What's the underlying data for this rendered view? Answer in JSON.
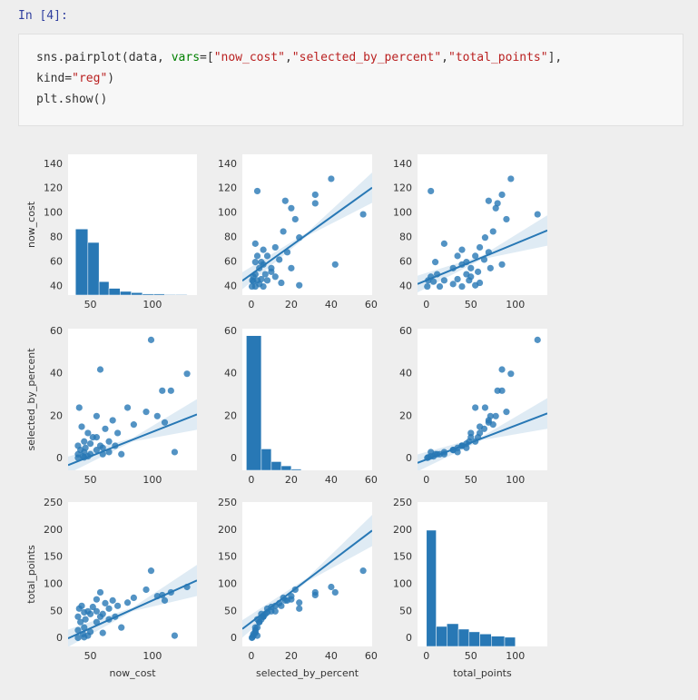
{
  "cell": {
    "prompt": "In [4]:",
    "code": [
      [
        {
          "text": "sns.pairplot(data, ",
          "style": "plain"
        },
        {
          "text": "vars",
          "style": "kw"
        },
        {
          "text": "=[",
          "style": "plain"
        },
        {
          "text": "\"now_cost\"",
          "style": "str"
        },
        {
          "text": ",",
          "style": "plain"
        },
        {
          "text": "\"selected_by_percent\"",
          "style": "str"
        },
        {
          "text": ",",
          "style": "plain"
        },
        {
          "text": "\"total_points\"",
          "style": "str"
        },
        {
          "text": "],",
          "style": "plain"
        }
      ],
      [
        {
          "text": "kind=",
          "style": "plain"
        },
        {
          "text": "\"reg\"",
          "style": "str"
        },
        {
          "text": ")",
          "style": "plain"
        }
      ],
      [
        {
          "text": "plt.show()",
          "style": "plain"
        }
      ]
    ]
  },
  "chart_data": {
    "type": "pairplot",
    "color": "#2878b5",
    "variables": [
      "now_cost",
      "selected_by_percent",
      "total_points"
    ],
    "axes": {
      "now_cost": {
        "xlim": [
          32,
          136
        ],
        "xticks": [
          50,
          100
        ],
        "ylim": [
          33,
          148
        ],
        "yticks": [
          40,
          60,
          80,
          100,
          120,
          140
        ]
      },
      "selected_by_percent": {
        "xlim": [
          -4.5,
          60.5
        ],
        "xticks": [
          0,
          20,
          40,
          60
        ],
        "ylim": [
          -5.6,
          61.3
        ],
        "yticks": [
          0,
          20,
          40,
          60
        ]
      },
      "total_points": {
        "xlim": [
          -10,
          136
        ],
        "xticks": [
          0,
          50,
          100
        ],
        "ylim": [
          -15,
          252
        ],
        "yticks": [
          0,
          50,
          100,
          150,
          200,
          250
        ]
      }
    },
    "data": {
      "now_cost": [
        99,
        128,
        58,
        115,
        108,
        118,
        110,
        104,
        95,
        85,
        80,
        72,
        68,
        65,
        62,
        60,
        58,
        55,
        55,
        52,
        50,
        50,
        48,
        48,
        46,
        45,
        45,
        45,
        44,
        43,
        42,
        40,
        40,
        40,
        41,
        55,
        60,
        65,
        70,
        75
      ],
      "selected_by_percent": [
        56,
        40,
        42,
        32,
        32,
        3,
        17,
        20,
        22,
        16,
        24,
        12,
        18,
        8,
        14,
        2,
        6,
        20,
        4,
        10,
        2,
        7,
        1,
        12,
        5,
        0.5,
        3,
        8,
        1,
        15,
        4,
        0.3,
        2,
        6,
        24,
        10,
        5,
        3,
        6,
        2
      ],
      "total_points": [
        125,
        95,
        85,
        85,
        80,
        5,
        70,
        78,
        90,
        75,
        66,
        60,
        70,
        55,
        65,
        10,
        40,
        72,
        30,
        58,
        12,
        45,
        5,
        50,
        35,
        2,
        20,
        48,
        8,
        60,
        30,
        1,
        15,
        40,
        55,
        50,
        45,
        35,
        40,
        20
      ]
    },
    "histograms": {
      "now_cost": {
        "bins": [
          38,
          48,
          57,
          65,
          74,
          83,
          92,
          101,
          110,
          119,
          128
        ],
        "values": [
          87,
          76,
          44,
          38.5,
          36,
          35,
          34,
          34,
          33.5,
          33.5
        ]
      },
      "selected_by_percent": {
        "bins": [
          -2.5,
          5,
          10,
          15,
          20,
          25
        ],
        "values": [
          58,
          4.5,
          -1.5,
          -3.5,
          -5
        ]
      },
      "total_points": {
        "bins": [
          0,
          11,
          23,
          36,
          48,
          60,
          73,
          88,
          100
        ],
        "values": [
          200,
          22,
          27,
          17,
          12,
          8,
          4,
          2
        ]
      }
    },
    "regressions": [
      {
        "x": "selected_by_percent",
        "y": "now_cost",
        "slope": 1.17,
        "intercept": 50
      },
      {
        "x": "total_points",
        "y": "now_cost",
        "slope": 0.3,
        "intercept": 45
      },
      {
        "x": "now_cost",
        "y": "selected_by_percent",
        "slope": 0.23,
        "intercept": -10.5
      },
      {
        "x": "total_points",
        "y": "selected_by_percent",
        "slope": 0.16,
        "intercept": -0.5
      },
      {
        "x": "now_cost",
        "y": "total_points",
        "slope": 1.03,
        "intercept": -33
      },
      {
        "x": "selected_by_percent",
        "y": "total_points",
        "slope": 2.8,
        "intercept": 30
      }
    ]
  }
}
